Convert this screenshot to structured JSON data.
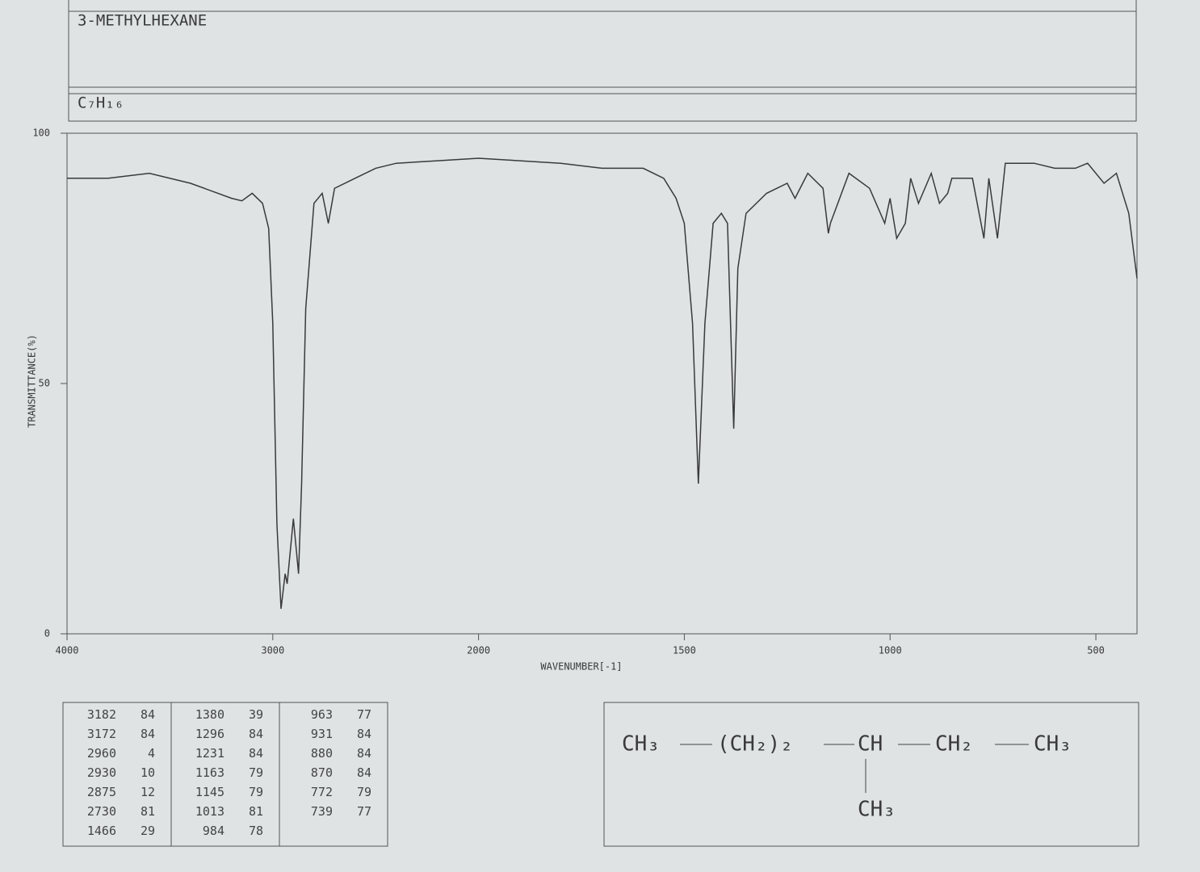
{
  "header": {
    "name": "3-METHYLHEXANE",
    "formula": "C₇H₁₆"
  },
  "chart_data": {
    "type": "line",
    "ylabel": "TRANSMITTANCE(%)",
    "xlabel": "WAVENUMBER[-1]",
    "x": [
      4000,
      3800,
      3600,
      3400,
      3200,
      3150,
      3100,
      3050,
      3020,
      3000,
      2980,
      2960,
      2940,
      2930,
      2900,
      2875,
      2860,
      2840,
      2800,
      2760,
      2730,
      2700,
      2600,
      2500,
      2400,
      2200,
      2000,
      1900,
      1800,
      1700,
      1600,
      1550,
      1520,
      1500,
      1480,
      1466,
      1450,
      1430,
      1410,
      1395,
      1380,
      1370,
      1350,
      1300,
      1250,
      1231,
      1200,
      1163,
      1150,
      1145,
      1100,
      1050,
      1013,
      1000,
      984,
      963,
      950,
      931,
      900,
      880,
      860,
      850,
      820,
      800,
      772,
      760,
      739,
      720,
      650,
      600,
      550,
      520,
      480,
      450,
      420,
      400
    ],
    "values": [
      91,
      91,
      92,
      90,
      87,
      86.5,
      88,
      86,
      81,
      62,
      22,
      5,
      12,
      10,
      23,
      12,
      30,
      65,
      86,
      88,
      82,
      89,
      91,
      93,
      94,
      94.5,
      95,
      94.5,
      94,
      93,
      93,
      91,
      87,
      82,
      62,
      30,
      62,
      82,
      84,
      82,
      41,
      73,
      84,
      88,
      90,
      87,
      92,
      89,
      80,
      82,
      92,
      89,
      82,
      87,
      79,
      82,
      91,
      86,
      92,
      86,
      88,
      91,
      91,
      91,
      79,
      91,
      79,
      94,
      94,
      93,
      93,
      94,
      90,
      92,
      84,
      71
    ],
    "color": "#3a3a3a",
    "xlim": [
      4000,
      400
    ],
    "xticks": [
      4000,
      3000,
      2000,
      1500,
      1000,
      500
    ],
    "ylim": [
      0,
      100
    ],
    "yticks": [
      0,
      50,
      100
    ]
  },
  "peak_table": {
    "columns": [
      [
        [
          3182,
          84
        ],
        [
          3172,
          84
        ],
        [
          2960,
          4
        ],
        [
          2930,
          10
        ],
        [
          2875,
          12
        ],
        [
          2730,
          81
        ],
        [
          1466,
          29
        ]
      ],
      [
        [
          1380,
          39
        ],
        [
          1296,
          84
        ],
        [
          1231,
          84
        ],
        [
          1163,
          79
        ],
        [
          1145,
          79
        ],
        [
          1013,
          81
        ],
        [
          984,
          78
        ]
      ],
      [
        [
          963,
          77
        ],
        [
          931,
          84
        ],
        [
          880,
          84
        ],
        [
          870,
          84
        ],
        [
          772,
          79
        ],
        [
          739,
          77
        ]
      ]
    ]
  },
  "structure": {
    "chain": [
      "CH₃",
      "(CH₂)₂",
      "CH",
      "CH₂",
      "CH₃"
    ],
    "branch": "CH₃"
  }
}
